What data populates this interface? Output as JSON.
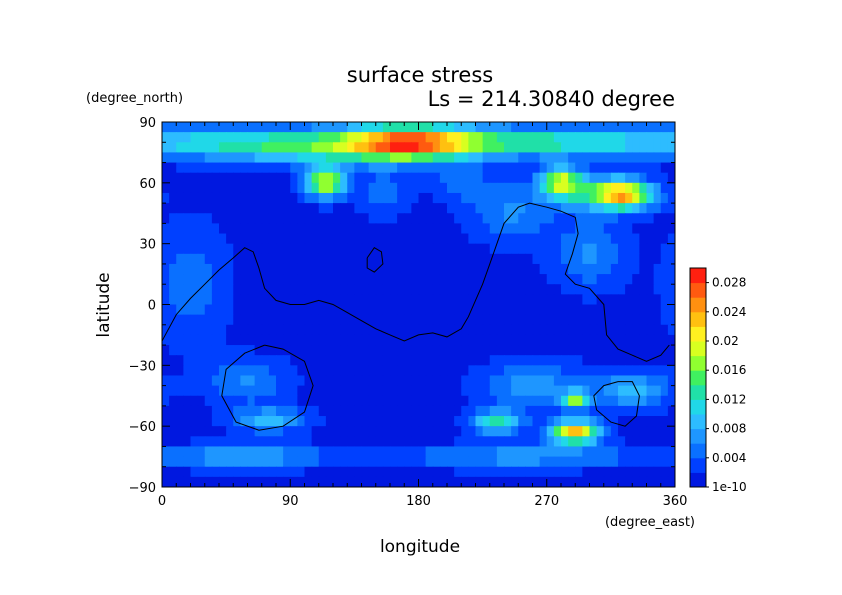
{
  "chart_data": {
    "type": "heatmap",
    "title": "surface stress",
    "subtitle": "Ls = 214.30840 degree",
    "xlabel": "longitude",
    "ylabel": "latitude",
    "xunits": "(degree_east)",
    "yunits": "(degree_north)",
    "xlim": [
      0,
      360
    ],
    "ylim": [
      -90,
      90
    ],
    "xticks": [
      "0",
      "90",
      "180",
      "270",
      "360"
    ],
    "yticks": [
      "90",
      "60",
      "30",
      "0",
      "−30",
      "−60",
      "−90"
    ],
    "xtick_values": [
      0,
      90,
      180,
      270,
      360
    ],
    "ytick_values": [
      90,
      60,
      30,
      0,
      -30,
      -60,
      -90
    ],
    "colorbar": {
      "labels": [
        "0.028",
        "0.024",
        "0.02",
        "0.016",
        "0.012",
        "0.008",
        "0.004",
        "1e-10"
      ],
      "label_values": [
        0.028,
        0.024,
        0.02,
        0.016,
        0.012,
        0.008,
        0.004,
        0.0
      ],
      "range": [
        0,
        0.03
      ],
      "colors": [
        "#0018e0",
        "#0040ff",
        "#0a70ff",
        "#1e96ff",
        "#2dbcff",
        "#20d8e8",
        "#20e0a8",
        "#40f060",
        "#90ff30",
        "#d8ff20",
        "#fff020",
        "#ffc010",
        "#ff9010",
        "#ff5a10",
        "#ff2010"
      ]
    },
    "features": [
      {
        "lon": 175,
        "lat": 80,
        "value": 0.021,
        "sx": 32,
        "sy": 6
      },
      {
        "lon": 115,
        "lat": 78,
        "value": 0.012,
        "sx": 55,
        "sy": 6
      },
      {
        "lon": 250,
        "lat": 80,
        "value": 0.01,
        "sx": 40,
        "sy": 5
      },
      {
        "lon": 320,
        "lat": 80,
        "value": 0.007,
        "sx": 40,
        "sy": 5
      },
      {
        "lon": 40,
        "lat": 80,
        "value": 0.006,
        "sx": 40,
        "sy": 5
      },
      {
        "lon": 115,
        "lat": 60,
        "value": 0.019,
        "sx": 10,
        "sy": 5
      },
      {
        "lon": 280,
        "lat": 61,
        "value": 0.015,
        "sx": 10,
        "sy": 5
      },
      {
        "lon": 325,
        "lat": 54,
        "value": 0.019,
        "sx": 14,
        "sy": 5
      },
      {
        "lon": 300,
        "lat": 55,
        "value": 0.009,
        "sx": 22,
        "sy": 6
      },
      {
        "lon": 245,
        "lat": 45,
        "value": 0.005,
        "sx": 20,
        "sy": 10
      },
      {
        "lon": 300,
        "lat": 25,
        "value": 0.005,
        "sx": 18,
        "sy": 12
      },
      {
        "lon": 290,
        "lat": -63,
        "value": 0.022,
        "sx": 12,
        "sy": 4
      },
      {
        "lon": 290,
        "lat": -47,
        "value": 0.014,
        "sx": 7,
        "sy": 3
      },
      {
        "lon": 235,
        "lat": -58,
        "value": 0.012,
        "sx": 12,
        "sy": 4
      },
      {
        "lon": 330,
        "lat": -42,
        "value": 0.008,
        "sx": 18,
        "sy": 6
      },
      {
        "lon": 260,
        "lat": -40,
        "value": 0.006,
        "sx": 25,
        "sy": 8
      },
      {
        "lon": 75,
        "lat": -57,
        "value": 0.008,
        "sx": 18,
        "sy": 4
      },
      {
        "lon": 60,
        "lat": -75,
        "value": 0.007,
        "sx": 40,
        "sy": 4
      },
      {
        "lon": 250,
        "lat": -75,
        "value": 0.006,
        "sx": 60,
        "sy": 4
      },
      {
        "lon": 60,
        "lat": -38,
        "value": 0.005,
        "sx": 20,
        "sy": 8
      },
      {
        "lon": 20,
        "lat": 10,
        "value": 0.004,
        "sx": 18,
        "sy": 20
      },
      {
        "lon": 155,
        "lat": 55,
        "value": 0.004,
        "sx": 12,
        "sy": 8
      },
      {
        "lon": 210,
        "lat": 60,
        "value": 0.004,
        "sx": 15,
        "sy": 6
      }
    ],
    "contours": [
      [
        [
          0,
          -18
        ],
        [
          10,
          -5
        ],
        [
          20,
          3
        ],
        [
          30,
          10
        ],
        [
          40,
          17
        ],
        [
          50,
          23
        ],
        [
          58,
          28
        ],
        [
          64,
          26
        ],
        [
          68,
          18
        ],
        [
          72,
          8
        ],
        [
          80,
          2
        ],
        [
          90,
          0
        ],
        [
          100,
          0
        ],
        [
          110,
          2
        ],
        [
          120,
          0
        ],
        [
          130,
          -4
        ],
        [
          140,
          -8
        ],
        [
          150,
          -12
        ],
        [
          160,
          -15
        ],
        [
          170,
          -18
        ],
        [
          180,
          -15
        ],
        [
          190,
          -14
        ],
        [
          200,
          -16
        ],
        [
          210,
          -12
        ],
        [
          215,
          -6
        ],
        [
          220,
          2
        ],
        [
          225,
          10
        ],
        [
          230,
          20
        ],
        [
          235,
          30
        ],
        [
          240,
          40
        ],
        [
          250,
          48
        ],
        [
          258,
          50
        ],
        [
          270,
          48
        ],
        [
          280,
          46
        ],
        [
          290,
          43
        ],
        [
          292,
          35
        ],
        [
          288,
          25
        ],
        [
          283,
          15
        ],
        [
          290,
          10
        ],
        [
          300,
          8
        ],
        [
          310,
          0
        ],
        [
          312,
          -15
        ],
        [
          320,
          -22
        ],
        [
          330,
          -25
        ],
        [
          340,
          -28
        ],
        [
          350,
          -25
        ],
        [
          356,
          -20
        ]
      ],
      [
        [
          144,
          23
        ],
        [
          149,
          28
        ],
        [
          154,
          26
        ],
        [
          155,
          20
        ],
        [
          149,
          16
        ],
        [
          144,
          18
        ],
        [
          144,
          23
        ]
      ],
      [
        [
          72,
          -20
        ],
        [
          85,
          -22
        ],
        [
          100,
          -28
        ],
        [
          106,
          -40
        ],
        [
          100,
          -53
        ],
        [
          85,
          -60
        ],
        [
          68,
          -62
        ],
        [
          52,
          -58
        ],
        [
          42,
          -45
        ],
        [
          45,
          -32
        ],
        [
          58,
          -24
        ],
        [
          72,
          -20
        ]
      ],
      [
        [
          320,
          -38
        ],
        [
          330,
          -38
        ],
        [
          335,
          -45
        ],
        [
          333,
          -55
        ],
        [
          325,
          -60
        ],
        [
          315,
          -58
        ],
        [
          305,
          -52
        ],
        [
          303,
          -45
        ],
        [
          310,
          -40
        ],
        [
          320,
          -38
        ]
      ]
    ]
  }
}
